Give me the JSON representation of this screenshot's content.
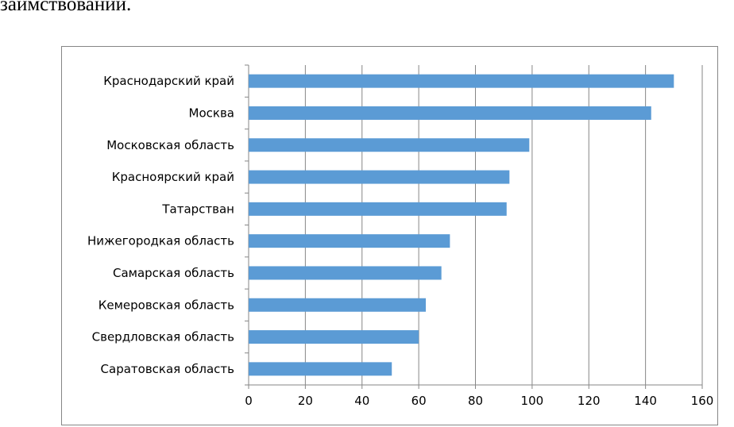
{
  "page_text": "заимствований.",
  "colors": {
    "bar": "#5b9bd5",
    "grid": "#868686",
    "axis": "#868686"
  },
  "chart_data": {
    "type": "bar",
    "orientation": "horizontal",
    "categories": [
      "Краснодарский край",
      "Москва",
      "Московская область",
      "Красноярский край",
      "Татарстван",
      "Нижегородкая область",
      "Самарская область",
      "Кемеровская область",
      "Свердловская область",
      "Саратовская область"
    ],
    "values": [
      150,
      142,
      99,
      92,
      91,
      71,
      68,
      62.5,
      60,
      50.5
    ],
    "xlim": [
      0,
      160
    ],
    "xticks": [
      "0",
      "20",
      "40",
      "60",
      "80",
      "100",
      "120",
      "140",
      "160"
    ],
    "grid": "vertical",
    "title": "",
    "xlabel": "",
    "ylabel": ""
  }
}
